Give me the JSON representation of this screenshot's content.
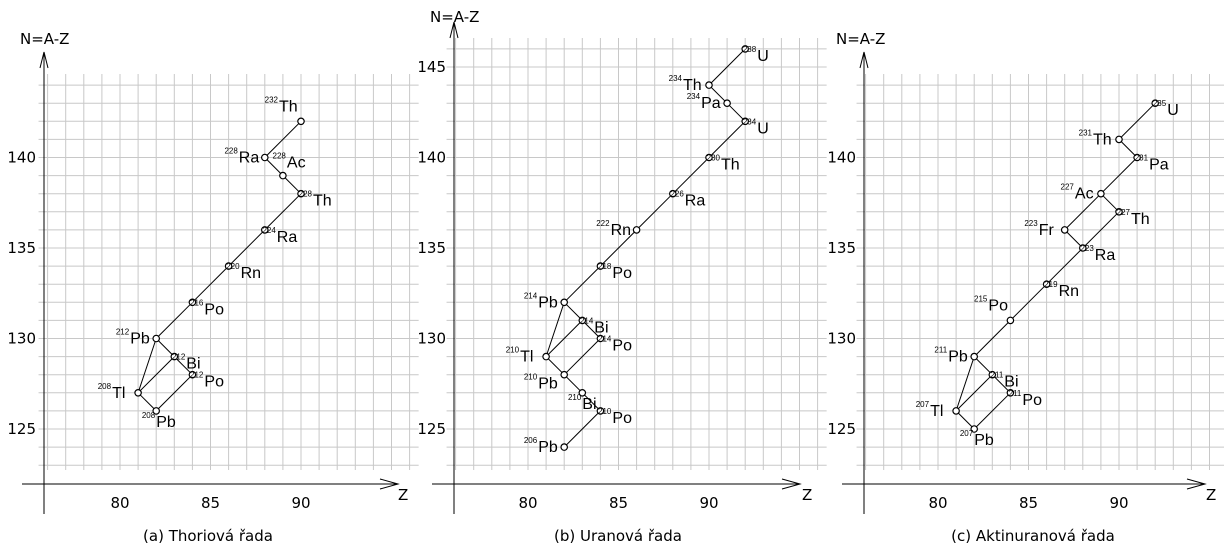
{
  "panels": [
    {
      "caption": "(a) Thoriová řada",
      "ylabel": "N=A-Z",
      "xlabel": "Z",
      "x_ticks": [
        80,
        85,
        90
      ],
      "y_ticks": [
        125,
        130,
        135,
        140
      ],
      "nuclides": [
        {
          "element": "Th",
          "mass": "232",
          "z": 90,
          "n": 142,
          "side": "above-left"
        },
        {
          "element": "Ra",
          "mass": "228",
          "z": 88,
          "n": 140,
          "side": "left"
        },
        {
          "element": "Ac",
          "mass": "228",
          "z": 89,
          "n": 139,
          "side": "above-right"
        },
        {
          "element": "Th",
          "mass": "228",
          "z": 90,
          "n": 138,
          "side": "right"
        },
        {
          "element": "Ra",
          "mass": "224",
          "z": 88,
          "n": 136,
          "side": "right"
        },
        {
          "element": "Rn",
          "mass": "220",
          "z": 86,
          "n": 134,
          "side": "right"
        },
        {
          "element": "Po",
          "mass": "216",
          "z": 84,
          "n": 132,
          "side": "right"
        },
        {
          "element": "Pb",
          "mass": "212",
          "z": 82,
          "n": 130,
          "side": "left"
        },
        {
          "element": "Bi",
          "mass": "212",
          "z": 83,
          "n": 129,
          "side": "right"
        },
        {
          "element": "Po",
          "mass": "212",
          "z": 84,
          "n": 128,
          "side": "right"
        },
        {
          "element": "Tl",
          "mass": "208",
          "z": 81,
          "n": 127,
          "side": "left"
        },
        {
          "element": "Pb",
          "mass": "208",
          "z": 82,
          "n": 126,
          "side": "below-right"
        }
      ],
      "links": [
        [
          [
            90,
            142
          ],
          [
            88,
            140
          ]
        ],
        [
          [
            88,
            140
          ],
          [
            89,
            139
          ]
        ],
        [
          [
            89,
            139
          ],
          [
            90,
            138
          ]
        ],
        [
          [
            90,
            138
          ],
          [
            88,
            136
          ]
        ],
        [
          [
            88,
            136
          ],
          [
            86,
            134
          ]
        ],
        [
          [
            86,
            134
          ],
          [
            84,
            132
          ]
        ],
        [
          [
            84,
            132
          ],
          [
            82,
            130
          ]
        ],
        [
          [
            82,
            130
          ],
          [
            83,
            129
          ]
        ],
        [
          [
            82,
            130
          ],
          [
            81,
            127
          ]
        ],
        [
          [
            83,
            129
          ],
          [
            84,
            128
          ]
        ],
        [
          [
            83,
            129
          ],
          [
            81,
            127
          ]
        ],
        [
          [
            84,
            128
          ],
          [
            82,
            126
          ]
        ],
        [
          [
            81,
            127
          ],
          [
            82,
            126
          ]
        ]
      ]
    },
    {
      "caption": "(b) Uranová řada",
      "ylabel": "N=A-Z",
      "xlabel": "Z",
      "x_ticks": [
        80,
        85,
        90
      ],
      "y_ticks": [
        125,
        130,
        135,
        140,
        145
      ],
      "nuclides": [
        {
          "element": "U",
          "mass": "238",
          "z": 92,
          "n": 146,
          "side": "right"
        },
        {
          "element": "Th",
          "mass": "234",
          "z": 90,
          "n": 144,
          "side": "left"
        },
        {
          "element": "Pa",
          "mass": "234",
          "z": 91,
          "n": 143,
          "side": "left"
        },
        {
          "element": "U",
          "mass": "234",
          "z": 92,
          "n": 142,
          "side": "right"
        },
        {
          "element": "Th",
          "mass": "230",
          "z": 90,
          "n": 140,
          "side": "right"
        },
        {
          "element": "Ra",
          "mass": "226",
          "z": 88,
          "n": 138,
          "side": "right"
        },
        {
          "element": "Rn",
          "mass": "222",
          "z": 86,
          "n": 136,
          "side": "left"
        },
        {
          "element": "Po",
          "mass": "218",
          "z": 84,
          "n": 134,
          "side": "right"
        },
        {
          "element": "Pb",
          "mass": "214",
          "z": 82,
          "n": 132,
          "side": "left"
        },
        {
          "element": "Bi",
          "mass": "214",
          "z": 83,
          "n": 131,
          "side": "right"
        },
        {
          "element": "Po",
          "mass": "214",
          "z": 84,
          "n": 130,
          "side": "right"
        },
        {
          "element": "Tl",
          "mass": "210",
          "z": 81,
          "n": 129,
          "side": "left"
        },
        {
          "element": "Pb",
          "mass": "210",
          "z": 82,
          "n": 128,
          "side": "below-left"
        },
        {
          "element": "Bi",
          "mass": "210",
          "z": 83,
          "n": 127,
          "side": "below-right"
        },
        {
          "element": "Po",
          "mass": "210",
          "z": 84,
          "n": 126,
          "side": "right"
        },
        {
          "element": "Pb",
          "mass": "206",
          "z": 82,
          "n": 124,
          "side": "left"
        }
      ],
      "links": [
        [
          [
            92,
            146
          ],
          [
            90,
            144
          ]
        ],
        [
          [
            90,
            144
          ],
          [
            91,
            143
          ]
        ],
        [
          [
            91,
            143
          ],
          [
            92,
            142
          ]
        ],
        [
          [
            92,
            142
          ],
          [
            90,
            140
          ]
        ],
        [
          [
            90,
            140
          ],
          [
            88,
            138
          ]
        ],
        [
          [
            88,
            138
          ],
          [
            86,
            136
          ]
        ],
        [
          [
            86,
            136
          ],
          [
            84,
            134
          ]
        ],
        [
          [
            84,
            134
          ],
          [
            82,
            132
          ]
        ],
        [
          [
            82,
            132
          ],
          [
            83,
            131
          ]
        ],
        [
          [
            82,
            132
          ],
          [
            81,
            129
          ]
        ],
        [
          [
            83,
            131
          ],
          [
            84,
            130
          ]
        ],
        [
          [
            83,
            131
          ],
          [
            81,
            129
          ]
        ],
        [
          [
            84,
            130
          ],
          [
            82,
            128
          ]
        ],
        [
          [
            81,
            129
          ],
          [
            82,
            128
          ]
        ],
        [
          [
            82,
            128
          ],
          [
            83,
            127
          ]
        ],
        [
          [
            83,
            127
          ],
          [
            84,
            126
          ]
        ],
        [
          [
            84,
            126
          ],
          [
            82,
            124
          ]
        ]
      ]
    },
    {
      "caption": "(c) Aktinuranová řada",
      "ylabel": "N=A-Z",
      "xlabel": "Z",
      "x_ticks": [
        80,
        85,
        90
      ],
      "y_ticks": [
        125,
        130,
        135,
        140
      ],
      "nuclides": [
        {
          "element": "U",
          "mass": "235",
          "z": 92,
          "n": 143,
          "side": "right"
        },
        {
          "element": "Th",
          "mass": "231",
          "z": 90,
          "n": 141,
          "side": "left"
        },
        {
          "element": "Pa",
          "mass": "231",
          "z": 91,
          "n": 140,
          "side": "right"
        },
        {
          "element": "Ac",
          "mass": "227",
          "z": 89,
          "n": 138,
          "side": "left"
        },
        {
          "element": "Th",
          "mass": "227",
          "z": 90,
          "n": 137,
          "side": "right"
        },
        {
          "element": "Fr",
          "mass": "223",
          "z": 87,
          "n": 136,
          "side": "left"
        },
        {
          "element": "Ra",
          "mass": "223",
          "z": 88,
          "n": 135,
          "side": "right"
        },
        {
          "element": "Rn",
          "mass": "219",
          "z": 86,
          "n": 133,
          "side": "right"
        },
        {
          "element": "Po",
          "mass": "215",
          "z": 84,
          "n": 131,
          "side": "above-left"
        },
        {
          "element": "Pb",
          "mass": "211",
          "z": 82,
          "n": 129,
          "side": "left"
        },
        {
          "element": "Bi",
          "mass": "211",
          "z": 83,
          "n": 128,
          "side": "right"
        },
        {
          "element": "Po",
          "mass": "211",
          "z": 84,
          "n": 127,
          "side": "right"
        },
        {
          "element": "Tl",
          "mass": "207",
          "z": 81,
          "n": 126,
          "side": "left"
        },
        {
          "element": "Pb",
          "mass": "207",
          "z": 82,
          "n": 125,
          "side": "below-right"
        }
      ],
      "links": [
        [
          [
            92,
            143
          ],
          [
            90,
            141
          ]
        ],
        [
          [
            90,
            141
          ],
          [
            91,
            140
          ]
        ],
        [
          [
            91,
            140
          ],
          [
            89,
            138
          ]
        ],
        [
          [
            89,
            138
          ],
          [
            90,
            137
          ]
        ],
        [
          [
            89,
            138
          ],
          [
            87,
            136
          ]
        ],
        [
          [
            90,
            137
          ],
          [
            88,
            135
          ]
        ],
        [
          [
            87,
            136
          ],
          [
            88,
            135
          ]
        ],
        [
          [
            88,
            135
          ],
          [
            86,
            133
          ]
        ],
        [
          [
            86,
            133
          ],
          [
            84,
            131
          ]
        ],
        [
          [
            84,
            131
          ],
          [
            82,
            129
          ]
        ],
        [
          [
            82,
            129
          ],
          [
            83,
            128
          ]
        ],
        [
          [
            82,
            129
          ],
          [
            81,
            126
          ]
        ],
        [
          [
            83,
            128
          ],
          [
            84,
            127
          ]
        ],
        [
          [
            83,
            128
          ],
          [
            81,
            126
          ]
        ],
        [
          [
            84,
            127
          ],
          [
            82,
            125
          ]
        ],
        [
          [
            81,
            126
          ],
          [
            82,
            125
          ]
        ]
      ]
    }
  ]
}
